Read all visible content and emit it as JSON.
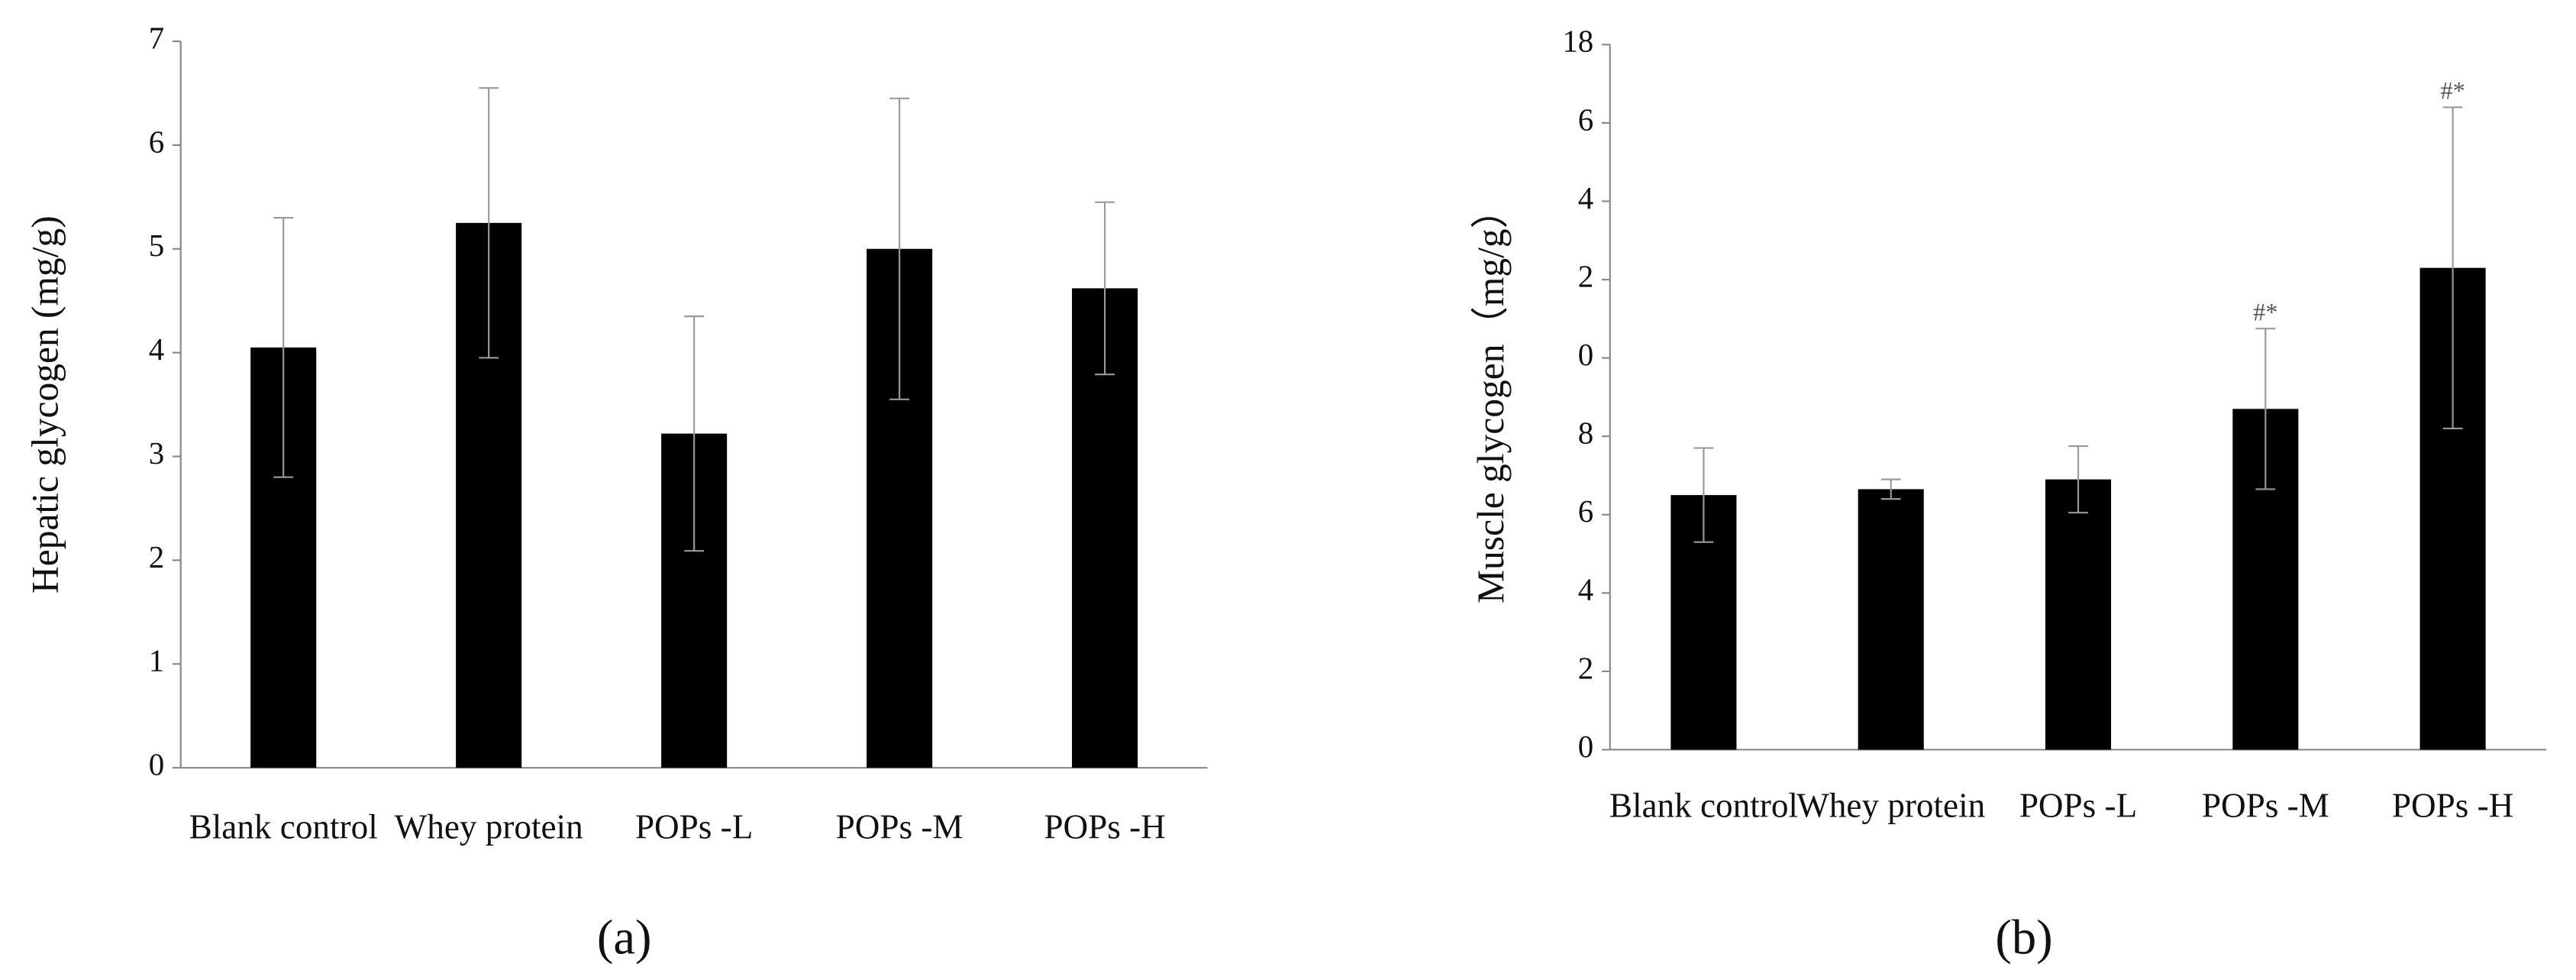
{
  "chart_data": [
    {
      "type": "bar",
      "caption": "(a)",
      "y_label": "Hepatic glycogen (mg/g)",
      "categories": [
        "Blank control",
        "Whey protein",
        "POPs -L",
        "POPs -M",
        "POPs -H"
      ],
      "values": [
        4.05,
        5.25,
        3.22,
        5.0,
        4.62
      ],
      "errors": [
        1.25,
        1.3,
        1.13,
        1.45,
        0.83
      ],
      "color": "#000000",
      "ylim": [
        0,
        7
      ],
      "yticks": [
        0,
        1,
        2,
        3,
        4,
        5,
        6,
        7
      ]
    },
    {
      "type": "bar",
      "caption": "(b)",
      "y_label": "Muscle glycogen（mg/g）",
      "categories": [
        "Blank control",
        "Whey protein",
        "POPs -L",
        "POPs -M",
        "POPs -H"
      ],
      "values": [
        6.5,
        6.65,
        6.9,
        8.7,
        12.3
      ],
      "errors": [
        1.2,
        0.25,
        0.85,
        2.05,
        4.1
      ],
      "annotations": [
        null,
        null,
        null,
        "#*",
        "#*"
      ],
      "color": "#000000",
      "ylim": [
        0,
        18
      ],
      "yticks": [
        0,
        2,
        4,
        6,
        8,
        {
          "value": 10,
          "label": "0"
        },
        {
          "value": 12,
          "label": "2"
        },
        {
          "value": 14,
          "label": "4"
        },
        {
          "value": 16,
          "label": "6"
        },
        18
      ]
    }
  ]
}
